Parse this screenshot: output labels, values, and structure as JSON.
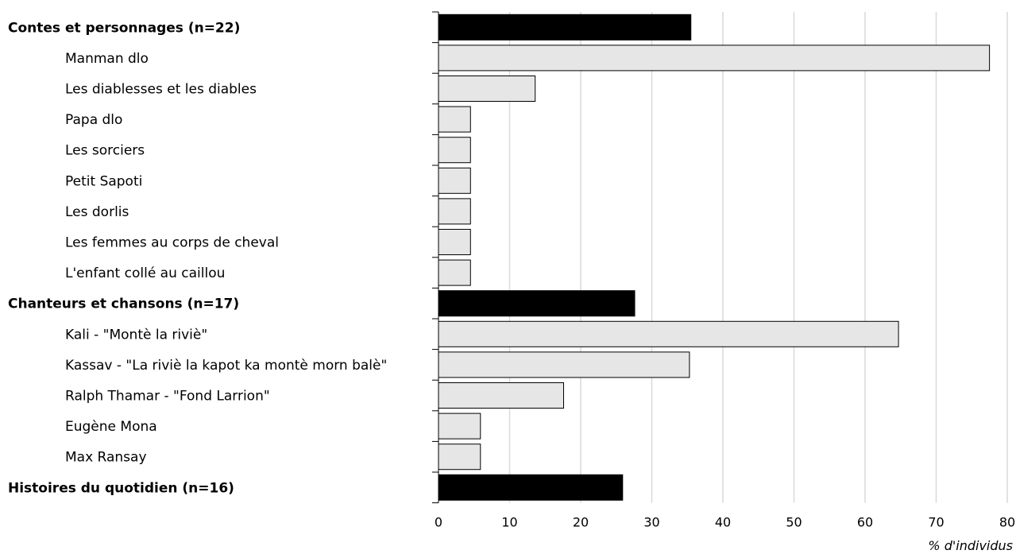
{
  "chart_data": {
    "type": "bar",
    "orientation": "horizontal",
    "xlabel": "% d'individus",
    "xlim": [
      0,
      80
    ],
    "xticks": [
      0,
      10,
      20,
      30,
      40,
      50,
      60,
      70,
      80
    ],
    "grid": true,
    "colors": {
      "group": "#000000",
      "item": "#e6e6e6",
      "grid": "#d9d9d9"
    },
    "bars": [
      {
        "label": "Contes et personnages (n=22)",
        "value": 35.5,
        "group": true
      },
      {
        "label": "Manman dlo",
        "value": 77.5,
        "group": false
      },
      {
        "label": "Les diablesses et les diables",
        "value": 13.6,
        "group": false
      },
      {
        "label": "Papa dlo",
        "value": 4.5,
        "group": false
      },
      {
        "label": "Les sorciers",
        "value": 4.5,
        "group": false
      },
      {
        "label": "Petit Sapoti",
        "value": 4.5,
        "group": false
      },
      {
        "label": "Les dorlis",
        "value": 4.5,
        "group": false
      },
      {
        "label": "Les femmes au corps de cheval",
        "value": 4.5,
        "group": false
      },
      {
        "label": "L'enfant collé au caillou",
        "value": 4.5,
        "group": false
      },
      {
        "label": "Chanteurs et chansons (n=17)",
        "value": 27.6,
        "group": true
      },
      {
        "label": "Kali - \"Montè la riviè\"",
        "value": 64.7,
        "group": false
      },
      {
        "label": "Kassav - \"La riviè la kapot ka montè morn balè\"",
        "value": 35.3,
        "group": false
      },
      {
        "label": "Ralph Thamar - \"Fond Larrion\"",
        "value": 17.6,
        "group": false
      },
      {
        "label": "Eugène Mona",
        "value": 5.9,
        "group": false
      },
      {
        "label": "Max Ransay",
        "value": 5.9,
        "group": false
      },
      {
        "label": "Histoires du quotidien (n=16)",
        "value": 25.9,
        "group": true
      }
    ]
  }
}
